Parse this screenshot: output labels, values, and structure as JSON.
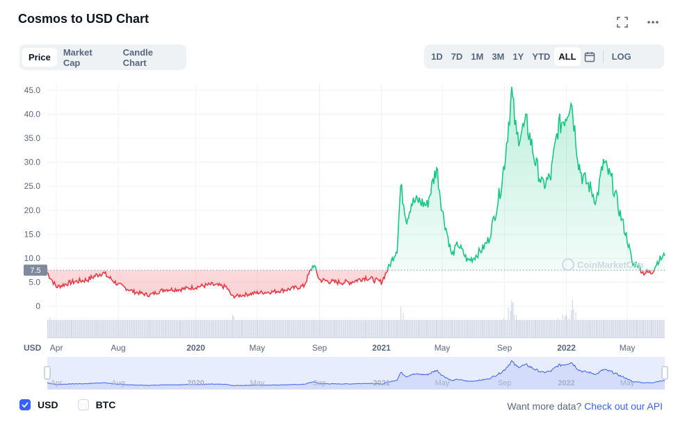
{
  "title": "Cosmos to USD Chart",
  "icons": {
    "expand": "expand-icon",
    "more": "more-icon",
    "calendar": "calendar-icon",
    "watermark": "coinmarketcap-logo"
  },
  "tabs": [
    {
      "label": "Price",
      "active": true
    },
    {
      "label": "Market Cap",
      "active": false
    },
    {
      "label": "Candle Chart",
      "active": false
    }
  ],
  "ranges": [
    {
      "label": "1D",
      "active": false
    },
    {
      "label": "7D",
      "active": false
    },
    {
      "label": "1M",
      "active": false
    },
    {
      "label": "3M",
      "active": false
    },
    {
      "label": "1Y",
      "active": false
    },
    {
      "label": "YTD",
      "active": false
    },
    {
      "label": "ALL",
      "active": true
    }
  ],
  "log_label": "LOG",
  "legend": {
    "usd": {
      "label": "USD",
      "checked": true
    },
    "btc": {
      "label": "BTC",
      "checked": false
    }
  },
  "footer": {
    "text": "Want more data?",
    "link": "Check out our API"
  },
  "colors": {
    "up": "#16c784",
    "down": "#ea3943",
    "accent": "#3861fb",
    "grid": "#eff2f5",
    "muted": "#58667e"
  },
  "chart_data": {
    "type": "line",
    "currency_label": "USD",
    "ylim": [
      0,
      45
    ],
    "yticks": [
      "0",
      "5.0",
      "10.0",
      "15.0",
      "20.0",
      "25.0",
      "30.0",
      "35.0",
      "40.0",
      "45.0"
    ],
    "reference_value": 7.5,
    "reference_label": "7.5",
    "xlim": [
      "2019-03-14",
      "2022-07-14"
    ],
    "xticks": [
      {
        "date": "2019-04-01",
        "label": "Apr",
        "bold": false
      },
      {
        "date": "2019-08-01",
        "label": "Aug",
        "bold": false
      },
      {
        "date": "2020-01-01",
        "label": "2020",
        "bold": true
      },
      {
        "date": "2020-05-01",
        "label": "May",
        "bold": false
      },
      {
        "date": "2020-09-01",
        "label": "Sep",
        "bold": false
      },
      {
        "date": "2021-01-01",
        "label": "2021",
        "bold": true
      },
      {
        "date": "2021-05-01",
        "label": "May",
        "bold": false
      },
      {
        "date": "2021-09-01",
        "label": "Sep",
        "bold": false
      },
      {
        "date": "2022-01-01",
        "label": "2022",
        "bold": true
      },
      {
        "date": "2022-05-01",
        "label": "May",
        "bold": false
      }
    ],
    "watermark": "CoinMarketCap",
    "series": {
      "x": [
        "2019-03-14",
        "2019-04-01",
        "2019-05-01",
        "2019-06-01",
        "2019-06-20",
        "2019-07-01",
        "2019-08-01",
        "2019-09-01",
        "2019-10-01",
        "2019-11-01",
        "2019-12-01",
        "2020-01-01",
        "2020-02-01",
        "2020-03-01",
        "2020-03-13",
        "2020-04-01",
        "2020-05-01",
        "2020-06-01",
        "2020-07-01",
        "2020-08-01",
        "2020-08-20",
        "2020-09-01",
        "2020-10-01",
        "2020-11-01",
        "2020-12-01",
        "2021-01-01",
        "2021-01-15",
        "2021-02-01",
        "2021-02-08",
        "2021-02-20",
        "2021-03-01",
        "2021-03-15",
        "2021-04-01",
        "2021-04-20",
        "2021-05-01",
        "2021-05-20",
        "2021-06-01",
        "2021-06-20",
        "2021-07-01",
        "2021-07-20",
        "2021-08-01",
        "2021-08-15",
        "2021-08-25",
        "2021-09-01",
        "2021-09-15",
        "2021-09-25",
        "2021-10-01",
        "2021-10-15",
        "2021-11-01",
        "2021-11-15",
        "2021-12-01",
        "2021-12-15",
        "2022-01-01",
        "2022-01-10",
        "2022-01-25",
        "2022-02-01",
        "2022-02-15",
        "2022-03-01",
        "2022-03-15",
        "2022-04-01",
        "2022-04-15",
        "2022-05-01",
        "2022-05-12",
        "2022-05-20",
        "2022-06-01",
        "2022-06-18",
        "2022-07-01",
        "2022-07-14"
      ],
      "y": [
        7.0,
        4.0,
        5.0,
        5.5,
        6.5,
        7.0,
        4.5,
        3.0,
        2.3,
        3.5,
        3.5,
        4.0,
        4.5,
        4.0,
        2.0,
        2.3,
        2.8,
        3.0,
        3.5,
        4.2,
        8.7,
        5.5,
        5.0,
        5.0,
        6.0,
        5.0,
        8.0,
        12.0,
        25.0,
        18.0,
        21.5,
        22.0,
        21.0,
        29.0,
        20.0,
        10.5,
        13.0,
        9.5,
        10.0,
        12.0,
        14.0,
        20.0,
        25.0,
        30.0,
        44.5,
        35.0,
        36.0,
        38.0,
        30.0,
        25.0,
        27.0,
        37.0,
        40.0,
        43.5,
        30.0,
        27.0,
        25.0,
        22.0,
        30.0,
        26.0,
        20.0,
        14.0,
        8.5,
        9.0,
        7.0,
        7.0,
        9.5,
        10.5
      ],
      "volume": [
        0.6,
        0.08,
        0.05,
        0.04,
        0.05,
        0.04,
        0.04,
        0.03,
        0.03,
        0.04,
        0.03,
        0.05,
        0.06,
        0.1,
        0.55,
        0.08,
        0.06,
        0.05,
        0.06,
        0.08,
        0.2,
        0.1,
        0.06,
        0.05,
        0.08,
        0.1,
        0.3,
        0.45,
        0.75,
        0.35,
        0.25,
        0.2,
        0.2,
        0.3,
        0.35,
        0.25,
        0.15,
        0.2,
        0.1,
        0.12,
        0.15,
        0.3,
        0.4,
        0.55,
        0.9,
        0.5,
        0.4,
        0.3,
        0.3,
        0.2,
        0.3,
        0.5,
        0.6,
        0.95,
        0.4,
        0.3,
        0.25,
        0.2,
        0.3,
        0.25,
        0.25,
        0.3,
        0.45,
        0.2,
        0.15,
        0.18,
        0.15,
        0.12
      ]
    }
  }
}
